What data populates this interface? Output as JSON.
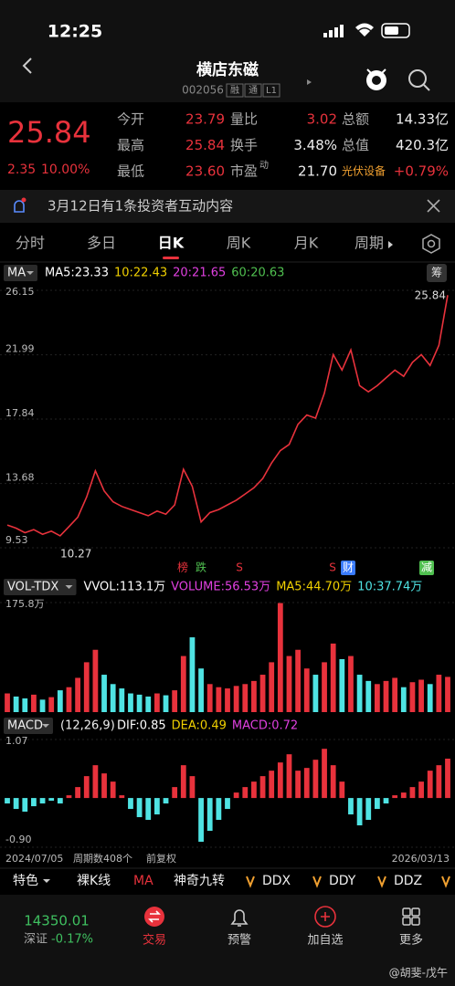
{
  "status": {
    "time": "12:25"
  },
  "header": {
    "title": "横店东磁",
    "code": "002056",
    "tags": [
      "融",
      "通",
      "L1"
    ]
  },
  "quote": {
    "price": "25.84",
    "change": "2.35",
    "percent": "10.00%",
    "rows": [
      [
        {
          "label": "今开",
          "value": "23.79"
        },
        {
          "label": "量比",
          "value": "3.02"
        },
        {
          "label": "总额",
          "value": "14.33亿"
        }
      ],
      [
        {
          "label": "最高",
          "value": "25.84"
        },
        {
          "label": "换手",
          "value": "3.48%"
        },
        {
          "label": "总值",
          "value": "420.3亿"
        }
      ],
      [
        {
          "label": "最低",
          "value": "23.60"
        },
        {
          "label": "市盈",
          "sup": "动",
          "value": "21.70"
        },
        {
          "label": "光伏设备",
          "value": "+0.79%"
        }
      ]
    ]
  },
  "notice": "3月12日有1条投资者互动内容",
  "tabs": [
    "分时",
    "多日",
    "日K",
    "周K",
    "月K",
    "周期"
  ],
  "chart_data": [
    {
      "type": "line",
      "indicator": "MA",
      "side_button": "筹",
      "legend": [
        {
          "text": "MA5:23.33",
          "color": "#ffffff"
        },
        {
          "text": "10:22.43",
          "color": "#f0d000"
        },
        {
          "text": "20:21.65",
          "color": "#e040e0"
        },
        {
          "text": "60:20.63",
          "color": "#50c050"
        }
      ],
      "color": "#e8323c",
      "ylim": [
        9.53,
        26.15
      ],
      "yticks": [
        26.15,
        21.99,
        17.84,
        13.68,
        9.53
      ],
      "annotations": [
        "25.84",
        "10.27"
      ],
      "markers": [
        "榜",
        "跌",
        "S",
        "S",
        "财",
        "减"
      ],
      "values": [
        11.0,
        10.8,
        10.5,
        10.7,
        10.4,
        10.6,
        10.3,
        10.9,
        11.5,
        12.8,
        14.5,
        13.2,
        12.5,
        12.2,
        12.0,
        11.8,
        11.6,
        11.9,
        11.7,
        12.3,
        14.6,
        13.5,
        11.2,
        11.8,
        12.0,
        12.3,
        12.6,
        13.0,
        13.4,
        14.0,
        15.0,
        15.8,
        16.2,
        17.5,
        18.1,
        17.9,
        19.5,
        22.0,
        21.0,
        22.3,
        20.0,
        19.6,
        20.0,
        20.5,
        21.0,
        20.6,
        21.5,
        22.0,
        21.3,
        22.6,
        25.84
      ]
    },
    {
      "type": "bar",
      "indicator": "VOL-TDX",
      "legend": [
        {
          "text": "VVOL:113.1万",
          "color": "#ffffff"
        },
        {
          "text": "VOLUME:56.53万",
          "color": "#e040e0"
        },
        {
          "text": "MA5:44.70万",
          "color": "#f0d000"
        },
        {
          "text": "10:37.74万",
          "color": "#4fe3e3"
        }
      ],
      "ylim": [
        0,
        175.8
      ],
      "yticks": [
        {
          "value": 175.8,
          "label": "175.8万"
        }
      ],
      "values": [
        30,
        25,
        22,
        28,
        20,
        24,
        35,
        40,
        55,
        80,
        100,
        60,
        45,
        38,
        30,
        28,
        25,
        30,
        27,
        35,
        90,
        120,
        70,
        45,
        40,
        38,
        42,
        45,
        50,
        60,
        80,
        175,
        90,
        100,
        70,
        60,
        80,
        110,
        85,
        90,
        60,
        50,
        45,
        50,
        55,
        40,
        48,
        52,
        45,
        60,
        56.53
      ]
    },
    {
      "type": "bar",
      "indicator": "MACD",
      "params": "(12,26,9)",
      "legend": [
        {
          "text": "DIF:0.85",
          "color": "#ffffff"
        },
        {
          "text": "DEA:0.49",
          "color": "#f0d000"
        },
        {
          "text": "MACD:0.72",
          "color": "#e040e0"
        }
      ],
      "ylim": [
        -0.9,
        1.07
      ],
      "yticks": [
        1.07,
        {
          "value": -0.9,
          "label": "-0.90"
        }
      ],
      "values": [
        -0.1,
        -0.2,
        -0.25,
        -0.15,
        -0.1,
        -0.05,
        -0.1,
        0.05,
        0.2,
        0.4,
        0.6,
        0.45,
        0.3,
        0.05,
        -0.2,
        -0.35,
        -0.4,
        -0.3,
        -0.1,
        0.2,
        0.6,
        0.4,
        -0.8,
        -0.6,
        -0.4,
        -0.2,
        0.1,
        0.2,
        0.3,
        0.4,
        0.5,
        0.65,
        0.8,
        0.5,
        0.55,
        0.7,
        0.9,
        0.6,
        0.3,
        -0.3,
        -0.5,
        -0.4,
        -0.2,
        -0.1,
        0.05,
        0.1,
        0.2,
        0.3,
        0.5,
        0.6,
        0.72
      ]
    }
  ],
  "footer": {
    "start": "2024/07/05",
    "count": "周期数408个",
    "adjust": "前复权",
    "end": "2026/03/13"
  },
  "indicators": [
    "特色",
    "裸K线",
    "MA",
    "神奇九转",
    "DDX",
    "DDY",
    "DDZ"
  ],
  "index": {
    "value": "14350.01",
    "name": "深证",
    "change": "-0.17%"
  },
  "nav": [
    "交易",
    "预警",
    "加自选",
    "更多"
  ],
  "watermark": "@胡斐-戊午"
}
